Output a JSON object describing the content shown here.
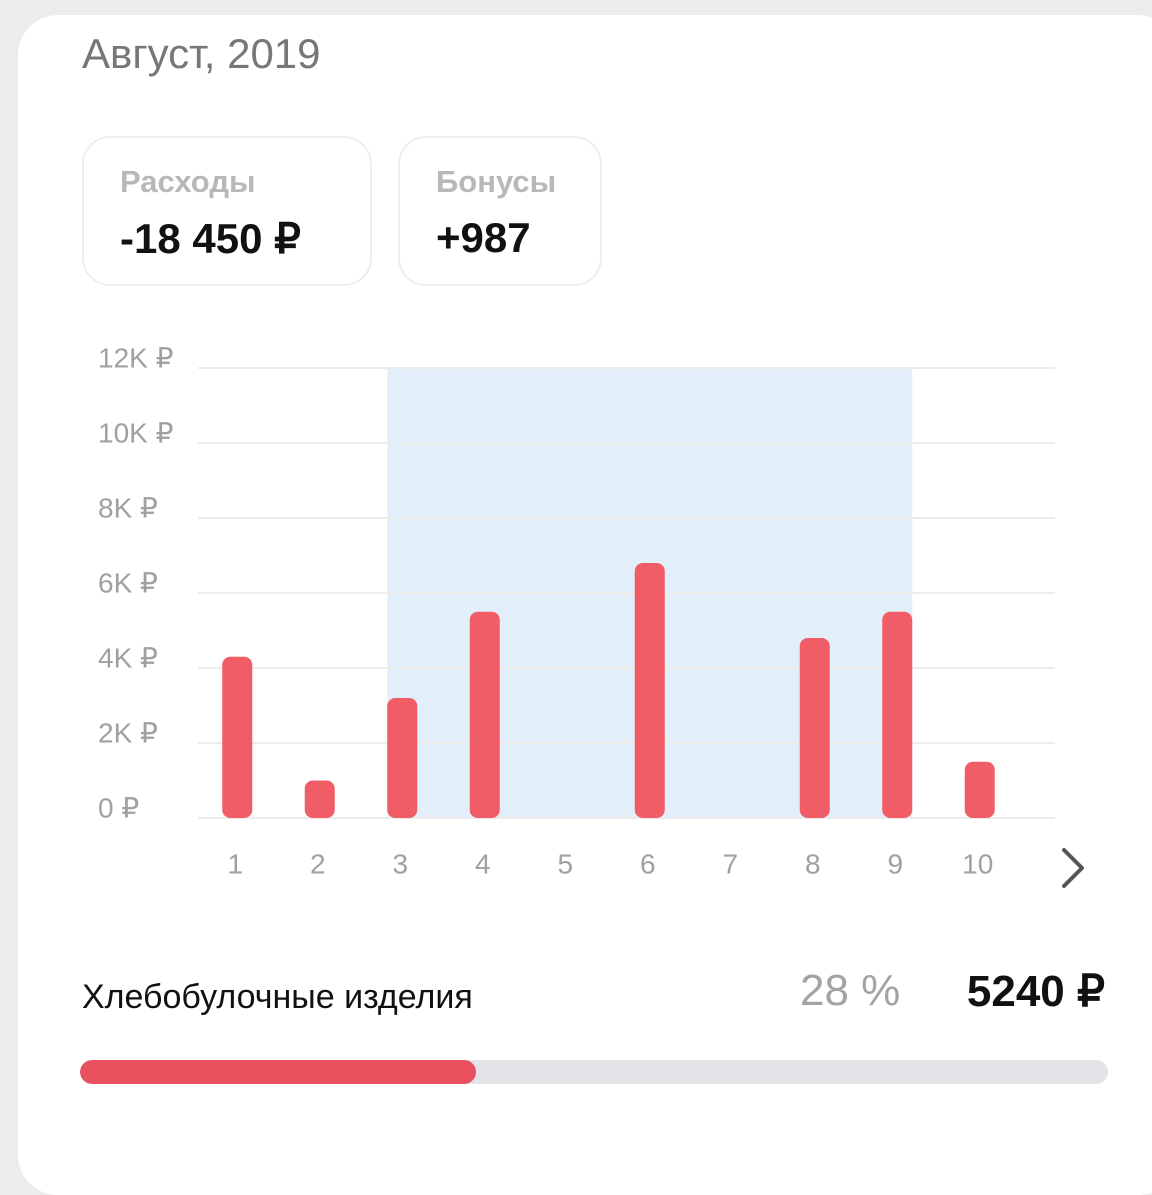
{
  "title": "Август, 2019",
  "stats": [
    {
      "label": "Расходы",
      "value": "-18 450 ₽"
    },
    {
      "label": "Бонусы",
      "value": "+987"
    }
  ],
  "chart_data": {
    "type": "bar",
    "categories": [
      "1",
      "2",
      "3",
      "4",
      "5",
      "6",
      "7",
      "8",
      "9",
      "10"
    ],
    "values": [
      4300,
      1000,
      3200,
      5500,
      0,
      6800,
      0,
      4800,
      5500,
      1500
    ],
    "color": "#f05d66",
    "ylim": [
      0,
      12000
    ],
    "yticks": [
      {
        "value": 0,
        "label": "0 ₽"
      },
      {
        "value": 2000,
        "label": "2K ₽"
      },
      {
        "value": 4000,
        "label": "4K ₽"
      },
      {
        "value": 6000,
        "label": "6K ₽"
      },
      {
        "value": 8000,
        "label": "8K ₽"
      },
      {
        "value": 10000,
        "label": "10K ₽"
      },
      {
        "value": 12000,
        "label": "12K ₽"
      }
    ],
    "grid": true,
    "highlight": {
      "from": 2,
      "to": 8,
      "color": "#e3eefb"
    }
  },
  "category": {
    "name": "Хлебобулочные изделия",
    "percent": "28 %",
    "amount": "5240 ₽",
    "progress": 38.5
  }
}
